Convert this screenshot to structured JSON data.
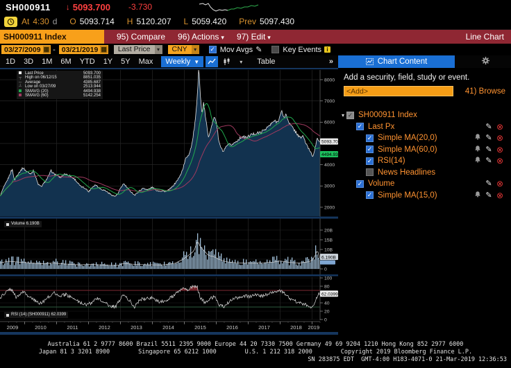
{
  "quote": {
    "ticker": "SH000911",
    "arrow": "↓",
    "last": "5093.700",
    "change": "-3.730",
    "session": {
      "at_label": "At",
      "time": "4:30",
      "flag": "d",
      "open_label": "O",
      "open": "5093.714",
      "high_label": "H",
      "high": "5120.207",
      "low_label": "L",
      "low": "5059.420",
      "prev_label": "Prev",
      "prev": "5097.430"
    }
  },
  "menubar": {
    "security_box": "SH000911 Index",
    "items": [
      {
        "label": "95) Compare",
        "arrow": false
      },
      {
        "label": "96) Actions",
        "arrow": true
      },
      {
        "label": "97) Edit",
        "arrow": true
      }
    ],
    "right_label": "Line Chart"
  },
  "filters": {
    "date_from": "03/27/2009",
    "date_to": "03/21/2019",
    "field_select": "Last Price",
    "currency_select": "CNY",
    "mov_avgs_label": "Mov Avgs",
    "key_events_label": "Key Events"
  },
  "toolbar": {
    "ranges": [
      "1D",
      "3D",
      "1M",
      "6M",
      "YTD",
      "1Y",
      "5Y",
      "Max"
    ],
    "period": "Weekly",
    "table_label": "Table",
    "more_label": "»",
    "chart_content_label": "Chart Content"
  },
  "panel": {
    "prompt": "Add a security, field, study or event.",
    "add_value": "<Add>",
    "browse_label": "41) Browse",
    "tree": [
      {
        "label": "SH000911 Index",
        "level": 0,
        "checkbox": "gray",
        "expander": true,
        "icons": []
      },
      {
        "label": "Last Px",
        "level": 1,
        "checkbox": "blue",
        "icons": [
          "pencil",
          "delete"
        ]
      },
      {
        "label": "Simple MA(20,0)",
        "level": 2,
        "checkbox": "blue",
        "icons": [
          "bell",
          "pencil",
          "delete"
        ]
      },
      {
        "label": "Simple MA(60,0)",
        "level": 2,
        "checkbox": "blue",
        "icons": [
          "bell",
          "pencil",
          "delete"
        ]
      },
      {
        "label": "RSI(14)",
        "level": 2,
        "checkbox": "blue",
        "icons": [
          "bell",
          "pencil",
          "delete"
        ]
      },
      {
        "label": "News Headlines",
        "level": 2,
        "checkbox": "grayoff",
        "icons": []
      },
      {
        "label": "Volume",
        "level": 1,
        "checkbox": "blue",
        "icons": [
          "pencil",
          "delete"
        ]
      },
      {
        "label": "Simple MA(15,0)",
        "level": 2,
        "checkbox": "blue",
        "icons": [
          "bell",
          "pencil",
          "delete"
        ]
      }
    ]
  },
  "footer": {
    "line1": "Australia 61 2 9777 8600 Brazil 5511 2395 9000 Europe 44 20 7330 7500 Germany 49 69 9204 1210 Hong Kong 852 2977 6000",
    "line2": "Japan 81 3 3201 8900        Singapore 65 6212 1000        U.S. 1 212 318 2000        Copyright 2019 Bloomberg Finance L.P.",
    "line3": "SN 283875 EDT  GMT-4:00 H183-4071-0 21-Mar-2019 12:36:53"
  },
  "chart_data": {
    "type": "line",
    "title": "SH000911 Index 03/27/2009 - 03/21/2019 weekly, Last Price with SMAVG(20), SMAVG(60), Volume, RSI(14)",
    "x_range_years": [
      2009.23,
      2019.25
    ],
    "x_tick_labels": [
      "2009",
      "2010",
      "2011",
      "2012",
      "2013",
      "2014",
      "2015",
      "2016",
      "2017",
      "2018",
      "2019"
    ],
    "panels": {
      "price": {
        "ylim": [
          1576,
          8456
        ],
        "yticks": [
          {
            "v": 8000,
            "label": "8000"
          },
          {
            "v": 7000,
            "label": "7000"
          },
          {
            "v": 6000,
            "label": "6000"
          },
          {
            "v": 5000,
            "label": ""
          },
          {
            "v": 4000,
            "label": "4000"
          },
          {
            "v": 3000,
            "label": "3000"
          },
          {
            "v": 2000,
            "label": "2000"
          }
        ],
        "last_value": 5093.7,
        "legend": [
          {
            "marker": "sq:#ffffff",
            "label": "Last Price",
            "value": "5093.700"
          },
          {
            "marker": "gl:┬",
            "label": "High on 06/12/15",
            "value": "8851.035"
          },
          {
            "marker": "gl:─",
            "label": "Average",
            "value": "4385.687"
          },
          {
            "marker": "gl:┴",
            "label": "Low on 03/27/09",
            "value": "2513.944"
          },
          {
            "marker": "sq:#21a94f",
            "label": "SMAVG (20)",
            "value": "4494.938"
          },
          {
            "marker": "sq:#a03a5f",
            "label": "SMAVG (60)",
            "value": "5142.254"
          }
        ],
        "badges": [
          {
            "text": "5093.700",
            "bg": "#ececec",
            "value": 5093.7
          },
          {
            "text": "4494.938",
            "bg": "#1dc15e",
            "value": 4494.938
          }
        ],
        "series_anchors": {
          "t": [
            2009.23,
            2009.32,
            2009.42,
            2009.5,
            2009.58,
            2009.62,
            2009.68,
            2009.75,
            2009.82,
            2009.95,
            2010.05,
            2010.18,
            2010.28,
            2010.42,
            2010.52,
            2010.6,
            2010.72,
            2010.83,
            2010.92,
            2011.02,
            2011.12,
            2011.25,
            2011.42,
            2011.58,
            2011.75,
            2011.92,
            2012.0,
            2012.12,
            2012.22,
            2012.38,
            2012.52,
            2012.68,
            2012.82,
            2012.92,
            2013.02,
            2013.1,
            2013.25,
            2013.45,
            2013.58,
            2013.72,
            2013.85,
            2014.0,
            2014.15,
            2014.3,
            2014.45,
            2014.6,
            2014.72,
            2014.85,
            2014.95,
            2015.05,
            2015.15,
            2015.25,
            2015.35,
            2015.42,
            2015.45,
            2015.5,
            2015.55,
            2015.6,
            2015.68,
            2015.75,
            2015.85,
            2015.95,
            2016.0,
            2016.08,
            2016.15,
            2016.22,
            2016.35,
            2016.5,
            2016.65,
            2016.8,
            2016.95,
            2017.1,
            2017.25,
            2017.4,
            2017.55,
            2017.7,
            2017.8,
            2017.92,
            2018.02,
            2018.06,
            2018.12,
            2018.18,
            2018.3,
            2018.42,
            2018.5,
            2018.62,
            2018.72,
            2018.82,
            2018.95,
            2019.02,
            2019.1,
            2019.17,
            2019.22
          ],
          "v": [
            2514,
            2850,
            3150,
            3400,
            3700,
            3760,
            3260,
            3480,
            3620,
            3860,
            3700,
            3580,
            3720,
            3090,
            2960,
            3120,
            3380,
            3720,
            3560,
            3520,
            3380,
            3580,
            3480,
            3300,
            2980,
            2880,
            2720,
            2950,
            3060,
            2860,
            2790,
            2620,
            2510,
            2620,
            2940,
            3110,
            2850,
            2560,
            2760,
            2900,
            2820,
            2940,
            2780,
            2760,
            2740,
            2920,
            3140,
            3420,
            3780,
            4320,
            4500,
            5050,
            6150,
            7450,
            8851,
            7300,
            6350,
            6900,
            6100,
            5250,
            5850,
            6250,
            6050,
            5100,
            4780,
            4600,
            4920,
            4950,
            5120,
            5320,
            5280,
            5420,
            5480,
            5520,
            5700,
            5880,
            6050,
            6020,
            6380,
            6520,
            6180,
            6380,
            5920,
            5680,
            5520,
            5260,
            5360,
            4940,
            4620,
            4380,
            4820,
            5280,
            5094
          ]
        }
      },
      "volume": {
        "legend": "Volume 6.190B",
        "yticks": [
          {
            "v": 20,
            "label": "20B"
          },
          {
            "v": 15,
            "label": "15B"
          },
          {
            "v": 10,
            "label": "10B"
          },
          {
            "v": 5,
            "label": ""
          },
          {
            "v": 0,
            "label": "0"
          }
        ],
        "badge": {
          "text": "6.190B",
          "bg": "#cdd5dd",
          "value": 6.19
        },
        "series_anchors": {
          "t": [
            2009.23,
            2009.5,
            2009.8,
            2010.1,
            2010.5,
            2010.9,
            2011.3,
            2011.7,
            2012.1,
            2012.5,
            2012.9,
            2013.1,
            2013.5,
            2013.9,
            2014.3,
            2014.7,
            2014.95,
            2015.1,
            2015.3,
            2015.42,
            2015.5,
            2015.6,
            2015.75,
            2015.95,
            2016.1,
            2016.3,
            2016.6,
            2016.9,
            2017.2,
            2017.5,
            2017.8,
            2018.0,
            2018.3,
            2018.6,
            2018.9,
            2019.0,
            2019.1,
            2019.17,
            2019.22
          ],
          "v": [
            3.5,
            4.5,
            4.0,
            3.6,
            3.0,
            3.4,
            2.8,
            2.4,
            2.6,
            2.2,
            2.0,
            3.2,
            2.6,
            2.4,
            2.3,
            3.2,
            5.5,
            7.5,
            10.5,
            16.5,
            13.0,
            11.0,
            8.0,
            7.0,
            5.5,
            4.2,
            3.6,
            3.4,
            3.3,
            3.6,
            4.0,
            4.6,
            3.8,
            3.4,
            4.2,
            5.0,
            8.0,
            11.5,
            6.19
          ]
        }
      },
      "rsi": {
        "legend": "RSI (14) (SH000911) 62.0399",
        "upper_level": 70,
        "lower_level": 30,
        "yticks": [
          {
            "v": 100,
            "label": "100"
          },
          {
            "v": 80,
            "label": "80"
          },
          {
            "v": 60,
            "label": ""
          },
          {
            "v": 40,
            "label": "40"
          },
          {
            "v": 20,
            "label": "20"
          },
          {
            "v": 0,
            "label": "0"
          }
        ],
        "badge": {
          "text": "62.0399",
          "bg": "#ececec",
          "value": 62.04
        },
        "last_value": 62.04,
        "series_anchors": {
          "t": [
            2009.23,
            2009.35,
            2009.5,
            2009.62,
            2009.72,
            2009.85,
            2009.95,
            2010.1,
            2010.3,
            2010.45,
            2010.6,
            2010.8,
            2010.95,
            2011.1,
            2011.3,
            2011.5,
            2011.7,
            2011.9,
            2012.1,
            2012.25,
            2012.45,
            2012.65,
            2012.85,
            2013.0,
            2013.1,
            2013.3,
            2013.45,
            2013.6,
            2013.8,
            2014.0,
            2014.2,
            2014.4,
            2014.6,
            2014.8,
            2014.95,
            2015.1,
            2015.25,
            2015.4,
            2015.5,
            2015.65,
            2015.8,
            2015.95,
            2016.1,
            2016.25,
            2016.45,
            2016.65,
            2016.85,
            2017.05,
            2017.25,
            2017.45,
            2017.65,
            2017.85,
            2018.0,
            2018.15,
            2018.3,
            2018.5,
            2018.7,
            2018.9,
            2019.0,
            2019.1,
            2019.22
          ],
          "v": [
            52,
            62,
            74,
            70,
            54,
            60,
            66,
            58,
            48,
            38,
            44,
            58,
            64,
            56,
            60,
            50,
            42,
            36,
            40,
            52,
            44,
            33,
            30,
            50,
            62,
            44,
            30,
            48,
            50,
            52,
            42,
            45,
            54,
            66,
            76,
            72,
            78,
            80,
            52,
            40,
            50,
            55,
            35,
            30,
            47,
            52,
            57,
            55,
            60,
            56,
            62,
            66,
            70,
            61,
            50,
            43,
            38,
            33,
            30,
            45,
            62
          ]
        }
      }
    }
  }
}
